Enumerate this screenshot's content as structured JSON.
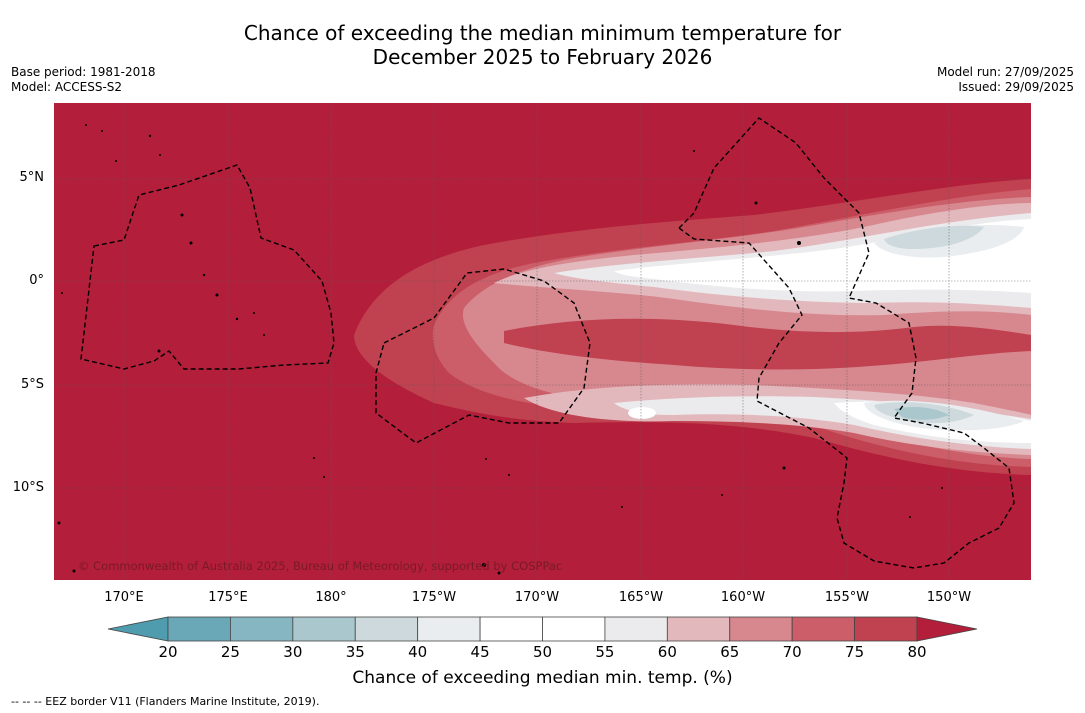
{
  "title": {
    "line1": "Chance of exceeding the median minimum temperature for",
    "line2": "December 2025 to February 2026"
  },
  "meta_left": {
    "base_period": "Base period: 1981-2018",
    "model": "Model: ACCESS-S2"
  },
  "meta_right": {
    "model_run": "Model run: 27/09/2025",
    "issued": "Issued: 29/09/2025"
  },
  "map": {
    "lat_labels": [
      "5°N",
      "0°",
      "5°S",
      "10°S"
    ],
    "lon_labels": [
      "170°E",
      "175°E",
      "180°",
      "175°W",
      "170°W",
      "165°W",
      "160°W",
      "155°W",
      "150°W"
    ],
    "copyright": "© Commonwealth of Australia 2025, Bureau of Meteorology, supported by COSPPac",
    "colors": {
      "c80": "#b31e3a",
      "c75": "#c0414f",
      "c70": "#cb5e68",
      "c65": "#d7878e",
      "c60": "#e2b8bd",
      "c55": "#ebeaec",
      "c45": "#ffffff",
      "c40": "#e9edf0",
      "c35": "#cdd9dc",
      "c30": "#a9c7cd",
      "c25": "#85b6c1"
    }
  },
  "colorbar": {
    "ticks": [
      "20",
      "25",
      "30",
      "35",
      "40",
      "45",
      "50",
      "55",
      "60",
      "65",
      "70",
      "75",
      "80"
    ],
    "colors": [
      "#6aa8b8",
      "#85b6c1",
      "#a9c7cd",
      "#cdd9dc",
      "#e9edf0",
      "#ffffff",
      "#ffffff",
      "#ebeaec",
      "#e2b8bd",
      "#d7878e",
      "#cb5e68",
      "#c0414f"
    ],
    "under_color": "#4e9cae",
    "over_color": "#b31e3a",
    "label": "Chance of exceeding median min. temp. (%)"
  },
  "footnote": "-- -- -- EEZ border V11 (Flanders Marine Institute, 2019)."
}
